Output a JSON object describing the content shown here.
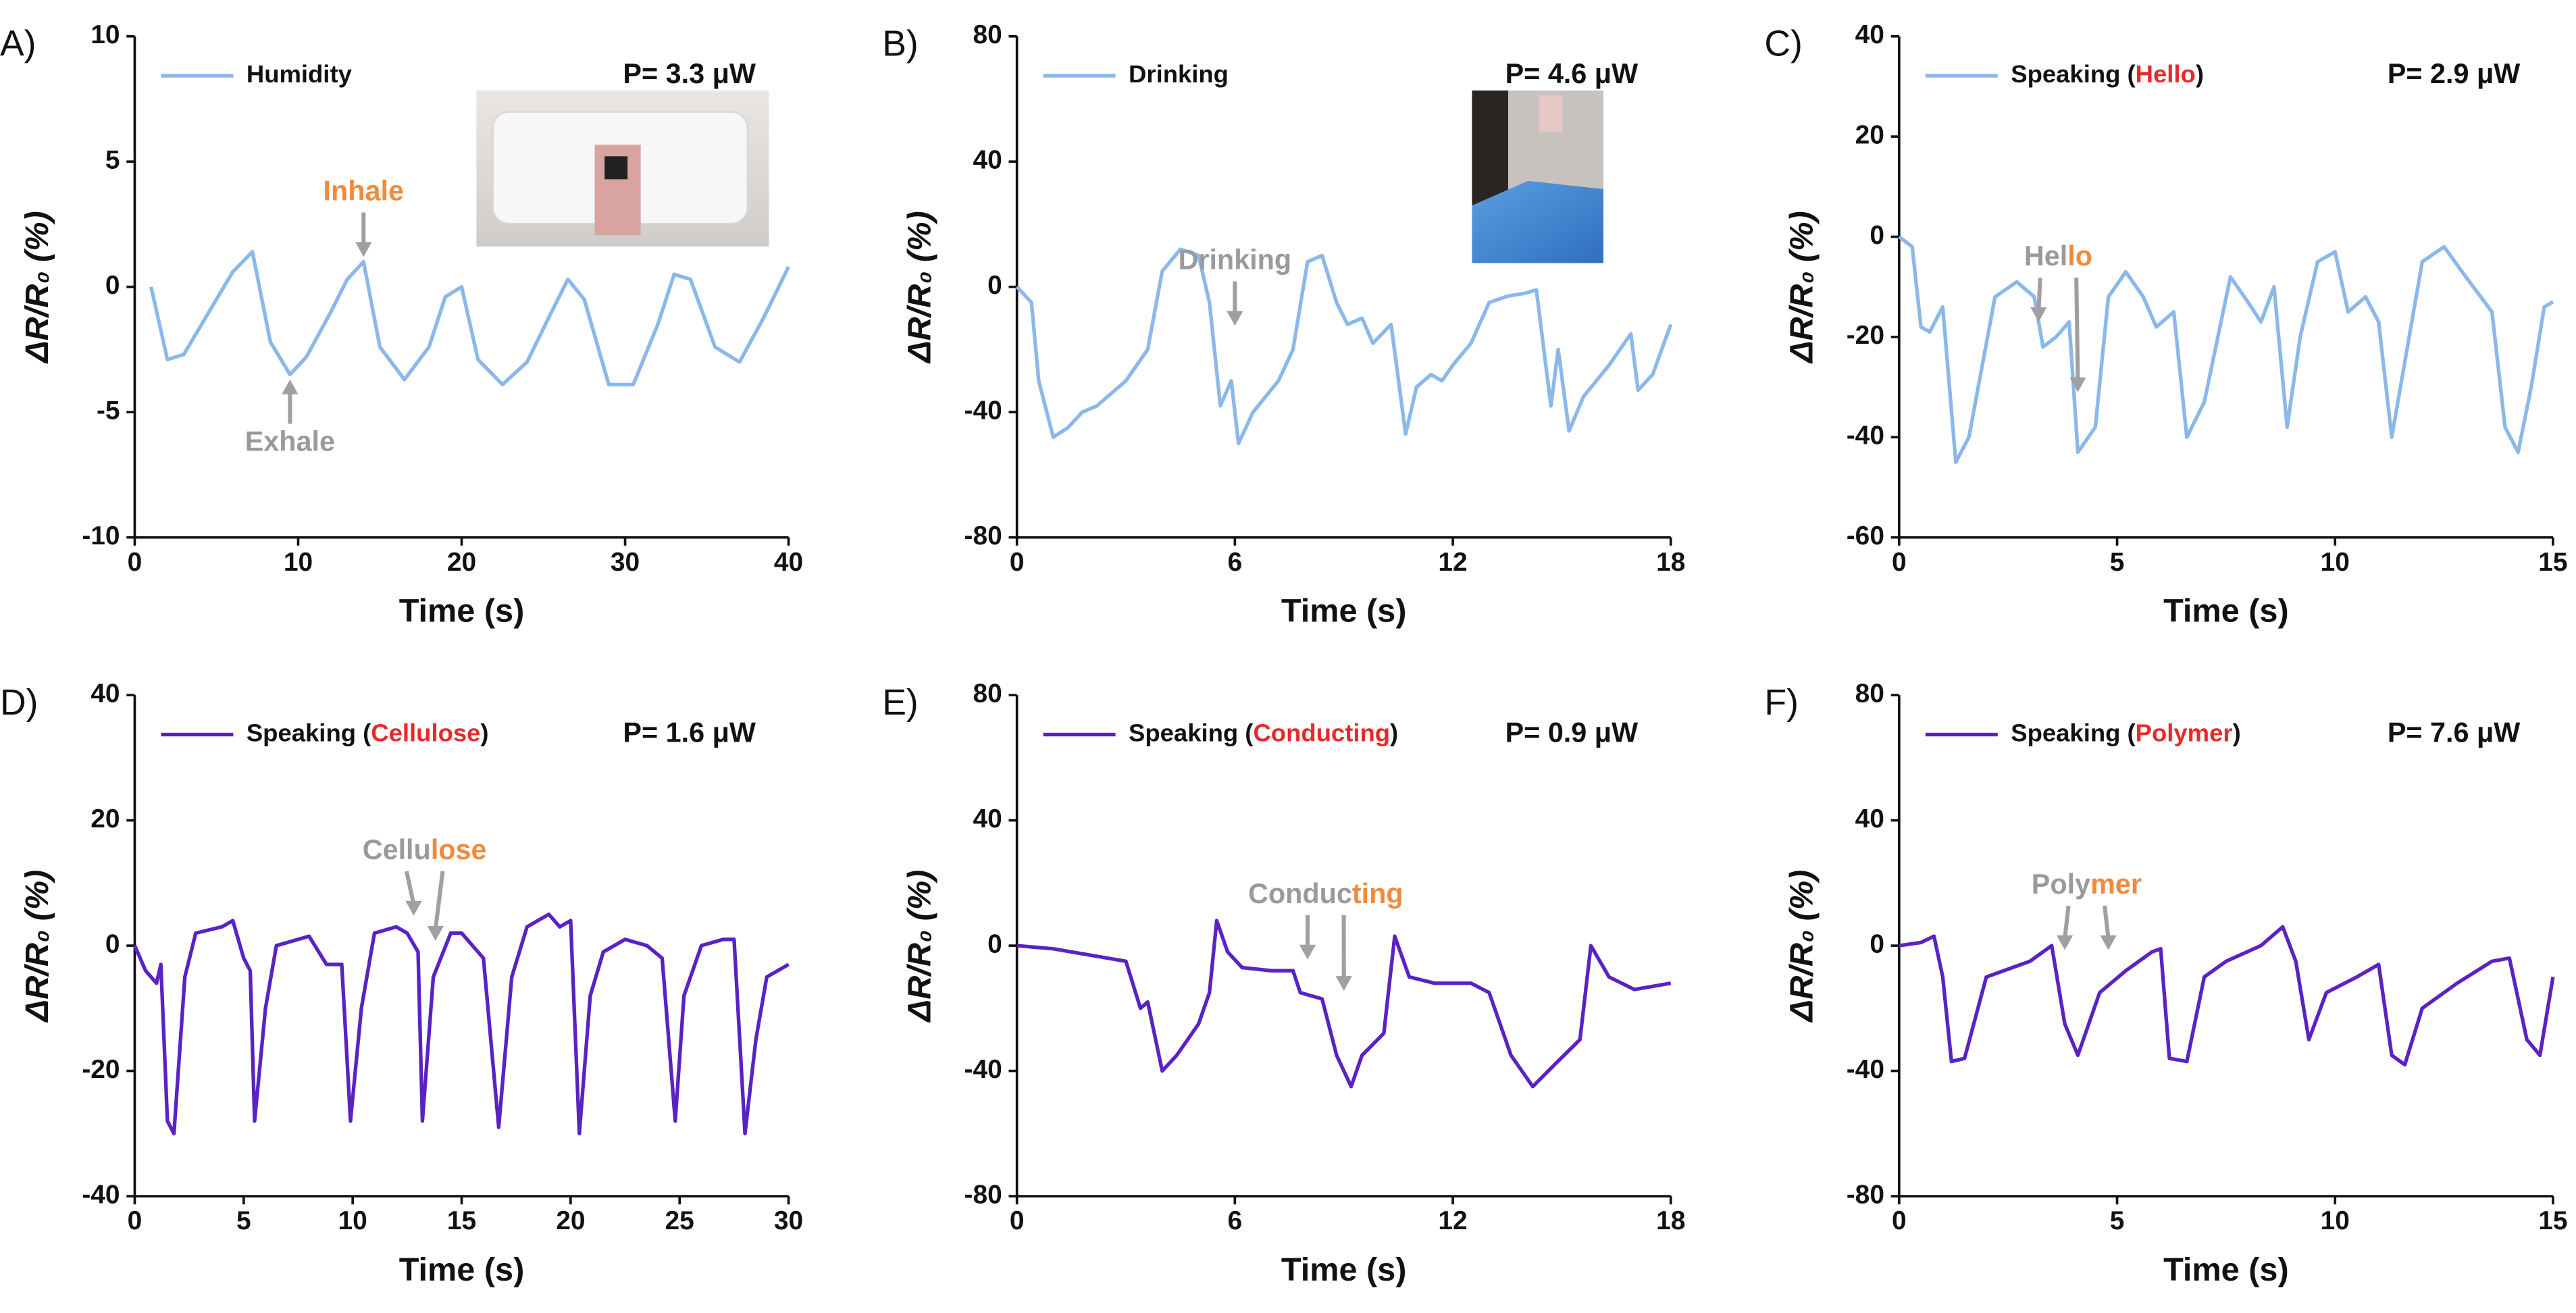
{
  "chart_data": [
    {
      "type": "line",
      "panel": "A)",
      "xlabel": "Time (s)",
      "ylabel": "ΔR/R₀ (%)",
      "power": "P= 3.3 μW",
      "xlim": [
        0,
        40
      ],
      "xticks": [
        0,
        10,
        20,
        30,
        40
      ],
      "ylim": [
        -10,
        10
      ],
      "yticks": [
        -10,
        -5,
        0,
        5,
        10
      ],
      "x": [
        1,
        2,
        3,
        5,
        6,
        7.2,
        8.3,
        9.5,
        10.5,
        12,
        13,
        14,
        15,
        16.5,
        18,
        19,
        20,
        21,
        22.5,
        24,
        25.5,
        26.5,
        27.5,
        29,
        30.5,
        32,
        33,
        34,
        35.5,
        37,
        38.5,
        40
      ],
      "series": [
        {
          "name": "Humidity",
          "color": "#8ab8ea",
          "values": [
            0,
            -2.9,
            -2.7,
            -0.5,
            0.6,
            1.4,
            -2.2,
            -3.5,
            -2.8,
            -1,
            0.3,
            1,
            -2.4,
            -3.7,
            -2.4,
            -0.4,
            0,
            -2.9,
            -3.9,
            -3,
            -1,
            0.3,
            -0.5,
            -3.9,
            -3.9,
            -1.5,
            0.5,
            0.3,
            -2.4,
            -3,
            -1.2,
            0.8
          ]
        }
      ],
      "annotations": [
        {
          "parts": [
            {
              "text": "Inhale",
              "color": "#f08a3c"
            }
          ],
          "points": [
            [
              14,
              1
            ]
          ],
          "position": "above"
        },
        {
          "parts": [
            {
              "text": "Exhale",
              "color": "#9a9a9a"
            }
          ],
          "points": [
            [
              9.5,
              -3.5
            ]
          ],
          "position": "below"
        }
      ]
    },
    {
      "type": "line",
      "panel": "B)",
      "xlabel": "Time (s)",
      "ylabel": "ΔR/R₀ (%)",
      "power": "P= 4.6 μW",
      "xlim": [
        0,
        18
      ],
      "xticks": [
        0,
        6,
        12,
        18
      ],
      "ylim": [
        -80,
        80
      ],
      "yticks": [
        -80,
        -40,
        0,
        40,
        80
      ],
      "x": [
        0,
        0.4,
        0.6,
        1,
        1.4,
        1.8,
        2.2,
        3,
        3.6,
        4,
        4.5,
        5,
        5.3,
        5.6,
        5.9,
        6.1,
        6.5,
        7.2,
        7.6,
        8,
        8.4,
        8.8,
        9.1,
        9.5,
        9.8,
        10.3,
        10.7,
        11,
        11.4,
        11.7,
        12,
        12.5,
        13,
        13.5,
        14,
        14.3,
        14.7,
        14.9,
        15.2,
        15.6,
        16.3,
        16.9,
        17.1,
        17.5,
        18
      ],
      "series": [
        {
          "name": "Drinking",
          "color": "#8ab8ea",
          "values": [
            0,
            -5,
            -30,
            -48,
            -45,
            -40,
            -38,
            -30,
            -20,
            5,
            12,
            10,
            -5,
            -38,
            -30,
            -50,
            -40,
            -30,
            -20,
            8,
            10,
            -5,
            -12,
            -10,
            -18,
            -12,
            -47,
            -32,
            -28,
            -30,
            -25,
            -18,
            -5,
            -3,
            -2,
            -1,
            -38,
            -20,
            -46,
            -35,
            -25,
            -15,
            -33,
            -28,
            -12
          ]
        }
      ],
      "annotations": [
        {
          "parts": [
            {
              "text": "Drinking",
              "color": "#9a9a9a"
            }
          ],
          "points": [
            [
              6,
              -14
            ]
          ],
          "position": "above"
        }
      ]
    },
    {
      "type": "line",
      "panel": "C)",
      "xlabel": "Time (s)",
      "ylabel": "ΔR/R₀ (%)",
      "power": "P= 2.9 μW",
      "xlim": [
        0,
        15
      ],
      "xticks": [
        0,
        5,
        10,
        15
      ],
      "ylim": [
        -60,
        40
      ],
      "yticks": [
        -60,
        -40,
        -20,
        0,
        20,
        40
      ],
      "x": [
        0,
        0.3,
        0.5,
        0.7,
        1,
        1.3,
        1.6,
        2.2,
        2.7,
        3.1,
        3.3,
        3.6,
        3.9,
        4.1,
        4.5,
        4.8,
        5.2,
        5.6,
        5.9,
        6.3,
        6.6,
        7,
        7.6,
        8,
        8.3,
        8.6,
        8.9,
        9.2,
        9.6,
        10,
        10.3,
        10.7,
        11,
        11.3,
        11.6,
        12,
        12.5,
        13,
        13.6,
        13.9,
        14.2,
        14.5,
        14.8,
        15
      ],
      "series": [
        {
          "name": "Speaking (Hello)",
          "name_highlight": "Hello",
          "highlight_color": "#e8292b",
          "color": "#8ab8ea",
          "values": [
            0,
            -2,
            -18,
            -19,
            -14,
            -45,
            -40,
            -12,
            -9,
            -12,
            -22,
            -20,
            -17,
            -43,
            -38,
            -12,
            -7,
            -12,
            -18,
            -15,
            -40,
            -33,
            -8,
            -13,
            -17,
            -10,
            -38,
            -20,
            -5,
            -3,
            -15,
            -12,
            -17,
            -40,
            -25,
            -5,
            -2,
            -8,
            -15,
            -38,
            -43,
            -30,
            -14,
            -13
          ]
        }
      ],
      "annotations": [
        {
          "parts": [
            {
              "text": "Hel",
              "color": "#9a9a9a"
            },
            {
              "text": "lo",
              "color": "#f08a3c"
            }
          ],
          "points": [
            [
              3.2,
              -18
            ],
            [
              4.1,
              -32
            ]
          ],
          "position": "above"
        }
      ]
    },
    {
      "type": "line",
      "panel": "D)",
      "xlabel": "Time (s)",
      "ylabel": "ΔR/R₀ (%)",
      "power": "P= 1.6 μW",
      "xlim": [
        0,
        30
      ],
      "xticks": [
        0,
        5,
        10,
        15,
        20,
        25,
        30
      ],
      "ylim": [
        -40,
        40
      ],
      "yticks": [
        -40,
        -20,
        0,
        20,
        40
      ],
      "x": [
        0,
        0.5,
        1,
        1.2,
        1.5,
        1.8,
        2.3,
        2.8,
        4,
        4.5,
        5,
        5.3,
        5.5,
        6,
        6.5,
        7.5,
        8,
        8.8,
        9.5,
        9.9,
        10.4,
        11,
        12,
        12.5,
        13,
        13.2,
        13.7,
        14.5,
        15,
        16,
        16.7,
        17.3,
        18,
        19,
        19.5,
        20,
        20.4,
        20.9,
        21.5,
        22.5,
        23.5,
        24.2,
        24.8,
        25.2,
        26,
        27,
        27.5,
        28,
        28.5,
        29,
        30
      ],
      "series": [
        {
          "name": "Speaking (Cellulose)",
          "name_highlight": "Cellulose",
          "highlight_color": "#e8292b",
          "color": "#5a22c4",
          "values": [
            0,
            -4,
            -6,
            -3,
            -28,
            -30,
            -5,
            2,
            3,
            4,
            -2,
            -4,
            -28,
            -10,
            0,
            1,
            1.5,
            -3,
            -3,
            -28,
            -10,
            2,
            3,
            2,
            -1,
            -28,
            -5,
            2,
            2,
            -2,
            -29,
            -5,
            3,
            5,
            3,
            4,
            -30,
            -8,
            -1,
            1,
            0,
            -2,
            -28,
            -8,
            0,
            1,
            1,
            -30,
            -15,
            -5,
            -3
          ]
        }
      ],
      "annotations": [
        {
          "parts": [
            {
              "text": "Cellu",
              "color": "#9a9a9a"
            },
            {
              "text": "lose",
              "color": "#f08a3c"
            }
          ],
          "points": [
            [
              12.8,
              4
            ],
            [
              13.8,
              0
            ]
          ],
          "position": "above"
        }
      ]
    },
    {
      "type": "line",
      "panel": "E)",
      "xlabel": "Time (s)",
      "ylabel": "ΔR/R₀ (%)",
      "power": "P= 0.9 μW",
      "xlim": [
        0,
        18
      ],
      "xticks": [
        0,
        6,
        12,
        18
      ],
      "ylim": [
        -80,
        80
      ],
      "yticks": [
        -80,
        -40,
        0,
        40,
        80
      ],
      "x": [
        0,
        1,
        2,
        3,
        3.4,
        3.6,
        4,
        4.4,
        5,
        5.3,
        5.5,
        5.8,
        6.2,
        7,
        7.6,
        7.8,
        8.4,
        8.8,
        9.2,
        9.5,
        10.1,
        10.4,
        10.8,
        11.5,
        12.5,
        13,
        13.3,
        13.6,
        14.2,
        14.8,
        15.5,
        15.8,
        16.3,
        17,
        18
      ],
      "series": [
        {
          "name": "Speaking (Conducting)",
          "name_highlight": "Conducting",
          "highlight_color": "#e8292b",
          "color": "#5a22c4",
          "values": [
            0,
            -1,
            -3,
            -5,
            -20,
            -18,
            -40,
            -35,
            -25,
            -15,
            8,
            -2,
            -7,
            -8,
            -8,
            -15,
            -17,
            -35,
            -45,
            -35,
            -28,
            3,
            -10,
            -12,
            -12,
            -15,
            -25,
            -35,
            -45,
            -38,
            -30,
            0,
            -10,
            -14,
            -12
          ]
        }
      ],
      "annotations": [
        {
          "parts": [
            {
              "text": "Conduc",
              "color": "#9a9a9a"
            },
            {
              "text": "ting",
              "color": "#f08a3c"
            }
          ],
          "points": [
            [
              8,
              -6
            ],
            [
              9,
              -16
            ]
          ],
          "position": "above"
        }
      ]
    },
    {
      "type": "line",
      "panel": "F)",
      "xlabel": "Time (s)",
      "ylabel": "ΔR/R₀ (%)",
      "power": "P= 7.6 μW",
      "xlim": [
        0,
        15
      ],
      "xticks": [
        0,
        5,
        10,
        15
      ],
      "ylim": [
        -80,
        80
      ],
      "yticks": [
        -80,
        -40,
        0,
        40,
        80
      ],
      "x": [
        0,
        0.5,
        0.8,
        1,
        1.2,
        1.5,
        2,
        2.6,
        3,
        3.5,
        3.8,
        4.1,
        4.6,
        5.2,
        5.8,
        6,
        6.2,
        6.6,
        7,
        7.5,
        8.3,
        8.8,
        9.1,
        9.4,
        9.8,
        10.5,
        11,
        11.3,
        11.6,
        12,
        12.8,
        13.6,
        14,
        14.4,
        14.7,
        15
      ],
      "series": [
        {
          "name": "Speaking (Polymer)",
          "name_highlight": "Polymer",
          "highlight_color": "#e8292b",
          "color": "#5a22c4",
          "values": [
            0,
            1,
            3,
            -10,
            -37,
            -36,
            -10,
            -7,
            -5,
            0,
            -25,
            -35,
            -15,
            -8,
            -2,
            -1,
            -36,
            -37,
            -10,
            -5,
            0,
            6,
            -5,
            -30,
            -15,
            -10,
            -6,
            -35,
            -38,
            -20,
            -12,
            -5,
            -4,
            -30,
            -35,
            -10
          ]
        }
      ],
      "annotations": [
        {
          "parts": [
            {
              "text": "Poly",
              "color": "#9a9a9a"
            },
            {
              "text": "mer",
              "color": "#f08a3c"
            }
          ],
          "points": [
            [
              3.8,
              -3
            ],
            [
              4.8,
              -3
            ]
          ],
          "position": "above"
        }
      ]
    }
  ]
}
